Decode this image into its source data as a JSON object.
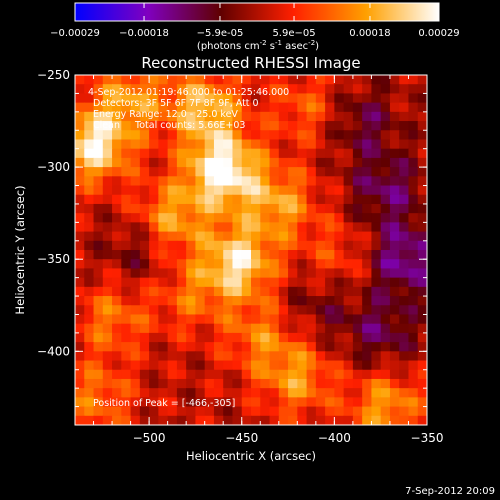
{
  "colorbar": {
    "ticks": [
      "-0.00029",
      "-0.00018",
      "-5.9e-05",
      "5.9e-05",
      "0.00018",
      "0.00029"
    ],
    "units_main": "(photons cm",
    "units_sup1": "-2",
    "units_mid1": " s",
    "units_sup2": "-1",
    "units_mid2": " asec",
    "units_sup3": "-2",
    "units_end": ")"
  },
  "chart_data": {
    "type": "heatmap",
    "title": "Reconstructed RHESSI Image",
    "xlabel": "Heliocentric X (arcsec)",
    "ylabel": "Heliocentric Y (arcsec)",
    "xlim": [
      -540,
      -350
    ],
    "ylim": [
      -440,
      -250
    ],
    "x_ticks": [
      "-500",
      "-450",
      "-400",
      "-350"
    ],
    "y_ticks": [
      "-250",
      "-300",
      "-350",
      "-400"
    ],
    "clim": [
      -0.00029,
      0.00029
    ],
    "colormap": [
      "#0000ff",
      "#8000c0",
      "#600000",
      "#ff2000",
      "#ffa000",
      "#ffffff"
    ],
    "annotations": [
      "4-Sep-2012 01:19:46.000 to 01:25:46.000",
      "Detectors: 3F 5F 6F 7F 8F 9F, Att 0",
      "Energy Range: 12.0 - 25.0 keV",
      "Clean     Total counts: 5.66E+03"
    ],
    "peak_label": "Position of Peak = [-466,-305]",
    "peak": [
      -466,
      -305
    ],
    "bright_regions": [
      {
        "x": -460,
        "y": -302,
        "v": 0.00029
      },
      {
        "x": -530,
        "y": -288,
        "v": 0.00026
      },
      {
        "x": -452,
        "y": -352,
        "v": 0.00024
      },
      {
        "x": -470,
        "y": -268,
        "v": 0.0002
      },
      {
        "x": -430,
        "y": -320,
        "v": 0.00016
      },
      {
        "x": -488,
        "y": -328,
        "v": 0.00017
      },
      {
        "x": -510,
        "y": -262,
        "v": 0.00015
      },
      {
        "x": -420,
        "y": -415,
        "v": 0.00015
      },
      {
        "x": -440,
        "y": -392,
        "v": 0.00012
      },
      {
        "x": -372,
        "y": -430,
        "v": 0.00016
      },
      {
        "x": -520,
        "y": -382,
        "v": 0.00012
      },
      {
        "x": -398,
        "y": -348,
        "v": 8e-05
      },
      {
        "x": -415,
        "y": -268,
        "v": 0.0001
      },
      {
        "x": -528,
        "y": -425,
        "v": 0.00012
      },
      {
        "x": -478,
        "y": -370,
        "v": 0.0001
      }
    ],
    "dark_regions": [
      {
        "x": -372,
        "y": -312,
        "v": -0.00012
      },
      {
        "x": -362,
        "y": -350,
        "v": -0.00016
      },
      {
        "x": -375,
        "y": -390,
        "v": -0.00011
      },
      {
        "x": -505,
        "y": -345,
        "v": -8e-05
      },
      {
        "x": -410,
        "y": -375,
        "v": -7e-05
      },
      {
        "x": -385,
        "y": -275,
        "v": -0.0001
      }
    ]
  },
  "timestamp": "7-Sep-2012 20:09"
}
